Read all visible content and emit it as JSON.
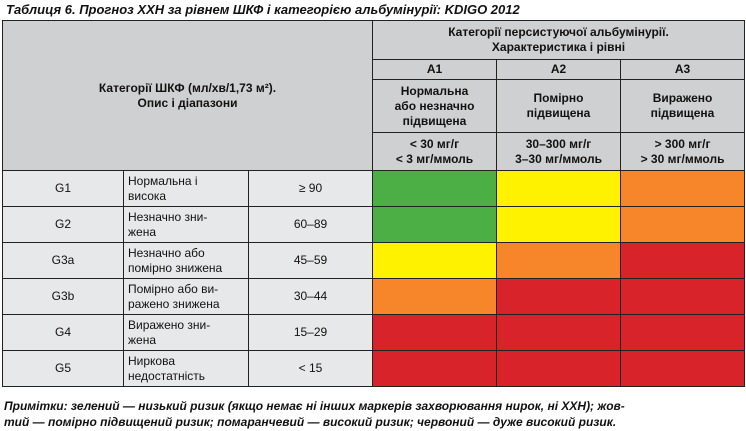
{
  "title": "Таблиця 6. Прогноз ХХН за рівнем ШКФ і категорією альбумінурії: KDIGO 2012",
  "colors": {
    "green": "#4caf46",
    "yellow": "#fff200",
    "orange": "#f7862a",
    "red": "#d9232b",
    "header_bg": "#cfd0d2",
    "row_bg": "#e7e8ea"
  },
  "header": {
    "gfr_label_line1": "Категорії ШКФ (мл/хв/1,73 м²).",
    "gfr_label_line2": "Опис і діапазони",
    "albumin_title_line1": "Категорії персистуючої альбумінурії.",
    "albumin_title_line2": "Характеристика і рівні",
    "a_categories": [
      {
        "code": "A1",
        "desc_lines": [
          "Нормальна",
          "або незначно",
          "підвищена"
        ],
        "range_lines": [
          "< 30 мг/г",
          "< 3 мг/ммоль"
        ]
      },
      {
        "code": "A2",
        "desc_lines": [
          "Помірно",
          "підвищена"
        ],
        "range_lines": [
          "30–300 мг/г",
          "3–30 мг/ммоль"
        ]
      },
      {
        "code": "A3",
        "desc_lines": [
          "Виражено",
          "підвищена"
        ],
        "range_lines": [
          "> 300 мг/г",
          "> 30 мг/ммоль"
        ]
      }
    ]
  },
  "rows": [
    {
      "code": "G1",
      "desc_lines": [
        "Нормальна і",
        "висока"
      ],
      "range": "≥ 90",
      "risks": [
        "green",
        "yellow",
        "orange"
      ]
    },
    {
      "code": "G2",
      "desc_lines": [
        "Незначно зни-",
        "жена"
      ],
      "range": "60–89",
      "risks": [
        "green",
        "yellow",
        "orange"
      ]
    },
    {
      "code": "G3a",
      "desc_lines": [
        "Незначно або",
        "помірно знижена"
      ],
      "range": "45–59",
      "risks": [
        "yellow",
        "orange",
        "red"
      ]
    },
    {
      "code": "G3b",
      "desc_lines": [
        "Помірно або ви-",
        "ражено знижена"
      ],
      "range": "30–44",
      "risks": [
        "orange",
        "red",
        "red"
      ]
    },
    {
      "code": "G4",
      "desc_lines": [
        "Виражено зни-",
        "жена"
      ],
      "range": "15–29",
      "risks": [
        "red",
        "red",
        "red"
      ]
    },
    {
      "code": "G5",
      "desc_lines": [
        "Ниркова",
        "недостатність"
      ],
      "range": "< 15",
      "risks": [
        "red",
        "red",
        "red"
      ]
    }
  ],
  "notes": {
    "line1": "Примітки: зелений — низький ризик (якщо немає ні інших маркерів захворювання нирок, ні ХХН); жов-",
    "line2": "тий — помірно підвищений ризик; помаранчевий — високий ризик; червоний — дуже високий ризик."
  }
}
